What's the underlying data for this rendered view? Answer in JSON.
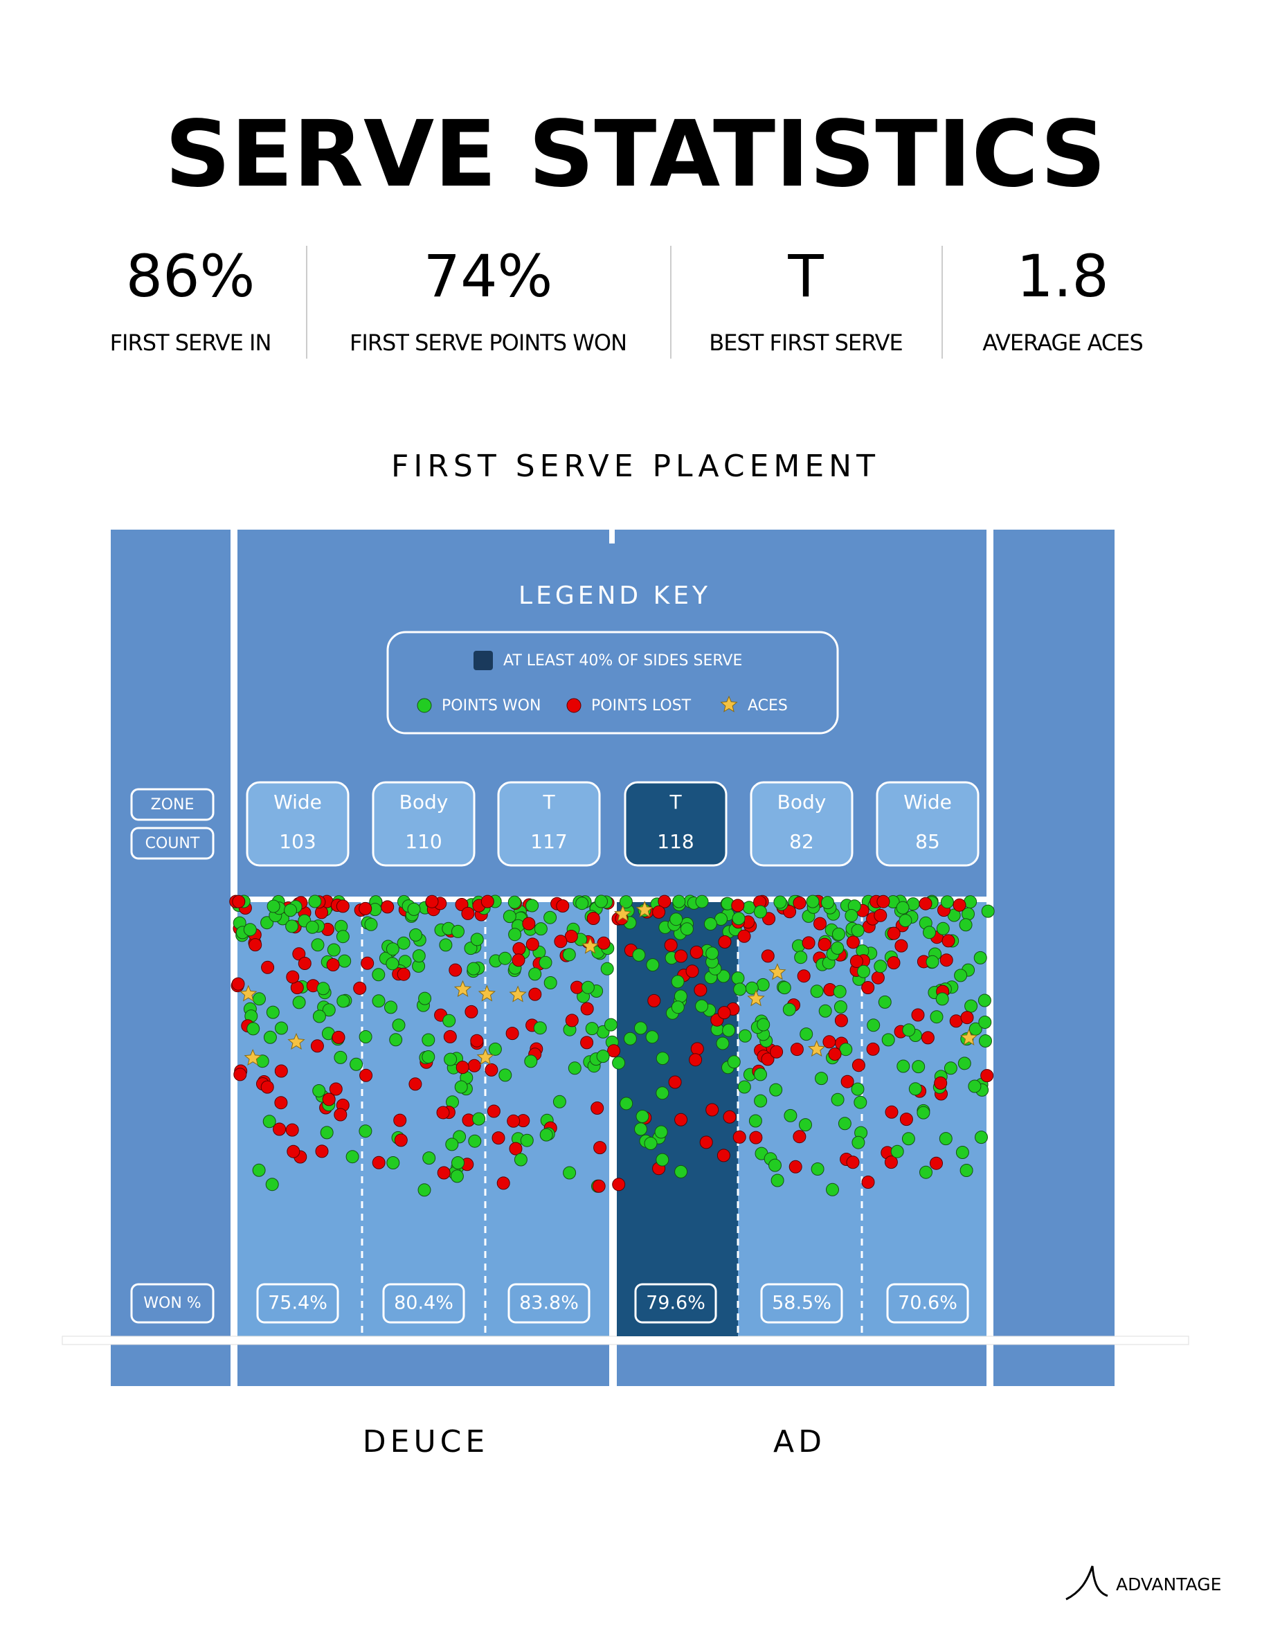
{
  "title": "SERVE STATISTICS",
  "stats": [
    {
      "value": "86%",
      "label": "FIRST SERVE IN"
    },
    {
      "value": "74%",
      "label": "FIRST SERVE POINTS WON"
    },
    {
      "value": "T",
      "label": "BEST FIRST SERVE"
    },
    {
      "value": "1.8",
      "label": "AVERAGE ACES"
    }
  ],
  "placement": {
    "title": "FIRST SERVE PLACEMENT",
    "legend": {
      "title": "LEGEND KEY",
      "highlight": "AT LEAST 40% OF SIDES SERVE",
      "won": "POINTS WON",
      "lost": "POINTS LOST",
      "aces": "ACES"
    },
    "row_labels": {
      "zone": "ZONE",
      "count": "COUNT",
      "won": "WON %"
    },
    "highlighted_zone": 3,
    "zones": [
      {
        "zone": "Wide",
        "count": 103,
        "won": "75.4%"
      },
      {
        "zone": "Body",
        "count": 110,
        "won": "80.4%"
      },
      {
        "zone": "T",
        "count": 117,
        "won": "83.8%"
      },
      {
        "zone": "T",
        "count": 118,
        "won": "79.6%"
      },
      {
        "zone": "Body",
        "count": 82,
        "won": "58.5%"
      },
      {
        "zone": "Wide",
        "count": 85,
        "won": "70.6%"
      }
    ],
    "sides": [
      "DEUCE",
      "AD"
    ]
  },
  "brand": "ADVANTAGE"
}
